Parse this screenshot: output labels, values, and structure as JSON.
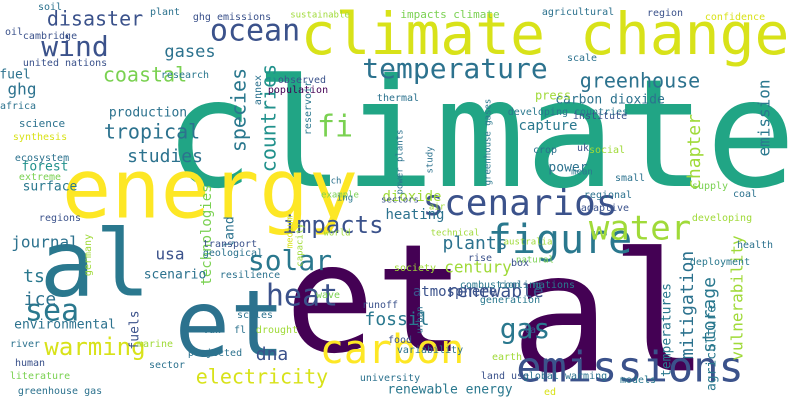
{
  "words": [
    {
      "text": "climate",
      "color": "#21a585"
    },
    {
      "text": "et",
      "color": "#440154"
    },
    {
      "text": "al",
      "color": "#440154"
    },
    {
      "text": "energy",
      "color": "#fde725"
    },
    {
      "text": "al",
      "color": "#2a788e"
    },
    {
      "text": "et",
      "color": "#2c728e"
    },
    {
      "text": "climate change",
      "color": "#d8e219"
    },
    {
      "text": "emissions",
      "color": "#3b528b"
    },
    {
      "text": "carbon",
      "color": "#fde725"
    },
    {
      "text": "figure",
      "color": "#2a788e"
    },
    {
      "text": "scenarios",
      "color": "#3b528b"
    },
    {
      "text": "water",
      "color": "#a0da39"
    },
    {
      "text": "temperature",
      "color": "#2c728e"
    },
    {
      "text": "ocean",
      "color": "#3b528b"
    },
    {
      "text": "wind",
      "color": "#3b528b"
    },
    {
      "text": "heat",
      "color": "#3b528b"
    },
    {
      "text": "solar",
      "color": "#2a788e"
    },
    {
      "text": "sea",
      "color": "#2a788e"
    },
    {
      "text": "warming",
      "color": "#d8e219"
    },
    {
      "text": "impacts",
      "color": "#3b528b"
    },
    {
      "text": "gas",
      "color": "#2a788e"
    },
    {
      "text": "electricity",
      "color": "#d8e219"
    },
    {
      "text": "fi",
      "color": "#7ad151"
    },
    {
      "text": "species",
      "color": "#2a788e"
    },
    {
      "text": "countries",
      "color": "#21918c"
    },
    {
      "text": "tropical",
      "color": "#2c728e"
    },
    {
      "text": "studies",
      "color": "#2c728e"
    },
    {
      "text": "coastal",
      "color": "#7ad151"
    },
    {
      "text": "gases",
      "color": "#2c728e"
    },
    {
      "text": "disaster",
      "color": "#3b528b"
    },
    {
      "text": "greenhouse",
      "color": "#2c728e"
    },
    {
      "text": "emission",
      "color": "#2a788e"
    },
    {
      "text": "chapter",
      "color": "#a0da39"
    },
    {
      "text": "storage",
      "color": "#2a788e"
    },
    {
      "text": "mitigation",
      "color": "#2c728e"
    },
    {
      "text": "vulnerability",
      "color": "#a0da39"
    },
    {
      "text": "fossil",
      "color": "#2a788e"
    },
    {
      "text": "renewable",
      "color": "#3b528b"
    },
    {
      "text": "dna",
      "color": "#3b528b"
    },
    {
      "text": "century",
      "color": "#a0da39"
    },
    {
      "text": "plants",
      "color": "#2c728e"
    },
    {
      "text": "journal",
      "color": "#2c728e"
    },
    {
      "text": "ice",
      "color": "#2c728e"
    },
    {
      "text": "ts",
      "color": "#2a788e"
    },
    {
      "text": "usa",
      "color": "#3b528b"
    },
    {
      "text": "ghg",
      "color": "#2c728e"
    },
    {
      "text": "dioxide",
      "color": "#a0da39"
    },
    {
      "text": "heating",
      "color": "#2c728e"
    },
    {
      "text": "atmosphere",
      "color": "#3b528b"
    },
    {
      "text": "carbon dioxide",
      "color": "#2c728e"
    },
    {
      "text": "capture",
      "color": "#2a788e"
    },
    {
      "text": "power",
      "color": "#2c728e"
    },
    {
      "text": "production",
      "color": "#2c728e"
    },
    {
      "text": "forest",
      "color": "#21918c"
    },
    {
      "text": "surface",
      "color": "#2a788e"
    },
    {
      "text": "environmental",
      "color": "#2c728e"
    },
    {
      "text": "technologies",
      "color": "#7ad151"
    },
    {
      "text": "land",
      "color": "#2c728e"
    },
    {
      "text": "scenario",
      "color": "#2c728e"
    },
    {
      "text": "fuels",
      "color": "#3b528b"
    },
    {
      "text": "fuel",
      "color": "#2c728e"
    },
    {
      "text": "agriculture",
      "color": "#2a788e"
    },
    {
      "text": "temperatures",
      "color": "#2a788e"
    },
    {
      "text": "renewable energy",
      "color": "#2a788e"
    },
    {
      "text": "press",
      "color": "#a0da39"
    },
    {
      "text": "science",
      "color": "#2c728e"
    },
    {
      "text": "synthesis",
      "color": "#d8e219"
    },
    {
      "text": "ecosystem",
      "color": "#2c728e"
    },
    {
      "text": "extreme",
      "color": "#7ad151"
    },
    {
      "text": "regions",
      "color": "#3b528b"
    },
    {
      "text": "germany",
      "color": "#a0da39"
    },
    {
      "text": "africa",
      "color": "#2c728e"
    },
    {
      "text": "united nations",
      "color": "#3b528b"
    },
    {
      "text": "cambridge",
      "color": "#3b528b"
    },
    {
      "text": "research",
      "color": "#2a788e"
    },
    {
      "text": "oil",
      "color": "#3b528b"
    },
    {
      "text": "soil",
      "color": "#2c728e"
    },
    {
      "text": "plant",
      "color": "#2c728e"
    },
    {
      "text": "ghg emissions",
      "color": "#3b528b"
    },
    {
      "text": "sustainable",
      "color": "#a0da39"
    },
    {
      "text": "impacts climate",
      "color": "#7ad151"
    },
    {
      "text": "agricultural",
      "color": "#2c728e"
    },
    {
      "text": "region",
      "color": "#3b528b"
    },
    {
      "text": "confidence",
      "color": "#d8e219"
    },
    {
      "text": "scale",
      "color": "#2c728e"
    },
    {
      "text": "developing countries",
      "color": "#2a788e"
    },
    {
      "text": "institute",
      "color": "#3b528b"
    },
    {
      "text": "thermal",
      "color": "#2c728e"
    },
    {
      "text": "observed",
      "color": "#3b528b"
    },
    {
      "text": "population",
      "color": "#440154"
    },
    {
      "text": "annex",
      "color": "#2c728e"
    },
    {
      "text": "reservoir",
      "color": "#2a788e"
    },
    {
      "text": "crop",
      "color": "#2c728e"
    },
    {
      "text": "uk",
      "color": "#3b528b"
    },
    {
      "text": "social",
      "color": "#a0da39"
    },
    {
      "text": "mean",
      "color": "#2a788e"
    },
    {
      "text": "supply",
      "color": "#7ad151"
    },
    {
      "text": "small",
      "color": "#2c728e"
    },
    {
      "text": "coal",
      "color": "#2c728e"
    },
    {
      "text": "developing",
      "color": "#a0da39"
    },
    {
      "text": "regional",
      "color": "#2c728e"
    },
    {
      "text": "adaptive",
      "color": "#3b528b"
    },
    {
      "text": "greenhouse gases",
      "color": "#2a788e"
    },
    {
      "text": "study",
      "color": "#2c728e"
    },
    {
      "text": "power plants",
      "color": "#2c728e"
    },
    {
      "text": "example",
      "color": "#7ad151"
    },
    {
      "text": "ch",
      "color": "#2c728e"
    },
    {
      "text": "ing",
      "color": "#2a788e"
    },
    {
      "text": "sectors",
      "color": "#3b528b"
    },
    {
      "text": "air",
      "color": "#a0da39"
    },
    {
      "text": "technical",
      "color": "#a0da39"
    },
    {
      "text": "australia",
      "color": "#a0da39"
    },
    {
      "text": "health",
      "color": "#2c728e"
    },
    {
      "text": "natural",
      "color": "#7ad151"
    },
    {
      "text": "rise",
      "color": "#3b528b"
    },
    {
      "text": "deployment",
      "color": "#2a788e"
    },
    {
      "text": "capacity",
      "color": "#a0da39"
    },
    {
      "text": "medium",
      "color": "#d8e219"
    },
    {
      "text": "transport",
      "color": "#3b528b"
    },
    {
      "text": "geological",
      "color": "#2c728e"
    },
    {
      "text": "society",
      "color": "#a0da39"
    },
    {
      "text": "combustion",
      "color": "#2a788e"
    },
    {
      "text": "box",
      "color": "#3b528b"
    },
    {
      "text": "cooling",
      "color": "#2c728e"
    },
    {
      "text": "nations",
      "color": "#2a788e"
    },
    {
      "text": "world",
      "color": "#a0da39"
    },
    {
      "text": "resilience",
      "color": "#2c728e"
    },
    {
      "text": "wave",
      "color": "#7ad151"
    },
    {
      "text": "runoff",
      "color": "#3b528b"
    },
    {
      "text": "generation",
      "color": "#2a788e"
    },
    {
      "text": "van",
      "color": "#2c728e"
    },
    {
      "text": "fl",
      "color": "#2c728e"
    },
    {
      "text": "scales",
      "color": "#2c728e"
    },
    {
      "text": "drought",
      "color": "#a0da39"
    },
    {
      "text": "food",
      "color": "#3b528b"
    },
    {
      "text": "variability",
      "color": "#2c728e"
    },
    {
      "text": "la",
      "color": "#3b528b"
    },
    {
      "text": "urban",
      "color": "#2c728e"
    },
    {
      "text": "marine",
      "color": "#a0da39"
    },
    {
      "text": "river",
      "color": "#2c728e"
    },
    {
      "text": "human",
      "color": "#3b528b"
    },
    {
      "text": "literature",
      "color": "#7ad151"
    },
    {
      "text": "sector",
      "color": "#2c728e"
    },
    {
      "text": "projected",
      "color": "#2c728e"
    },
    {
      "text": "university",
      "color": "#2c728e"
    },
    {
      "text": "earth",
      "color": "#a0da39"
    },
    {
      "text": "land use",
      "color": "#3b528b"
    },
    {
      "text": "global warming",
      "color": "#2c728e"
    },
    {
      "text": "models",
      "color": "#2a788e"
    },
    {
      "text": "ed",
      "color": "#d8e219"
    },
    {
      "text": "greenhouse gas",
      "color": "#2c728e"
    }
  ]
}
